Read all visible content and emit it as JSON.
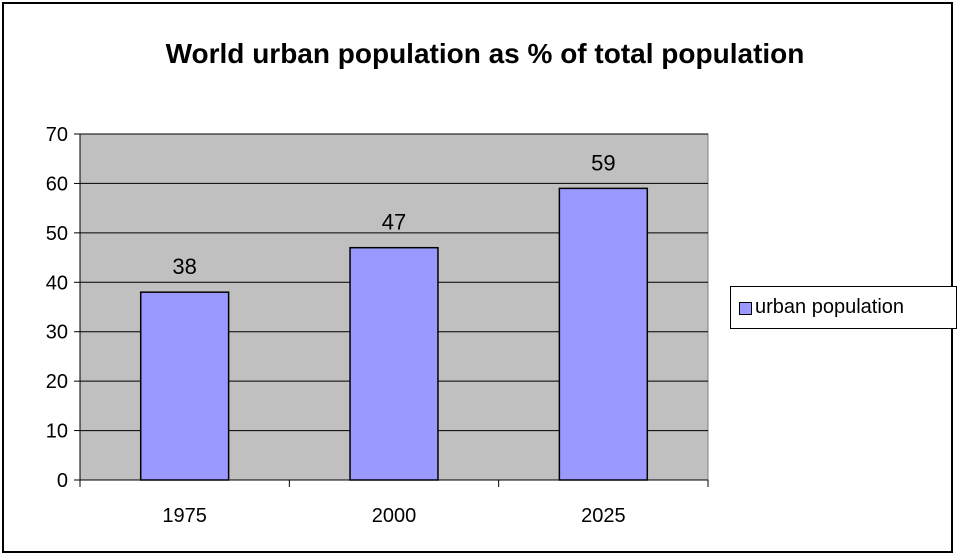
{
  "chart_data": {
    "type": "bar",
    "title": "World urban population as % of total population",
    "categories": [
      "1975",
      "2000",
      "2025"
    ],
    "series": [
      {
        "name": "urban population",
        "values": [
          38,
          47,
          59
        ],
        "color": "#9999ff"
      }
    ],
    "ylim": [
      0,
      70
    ],
    "yticks": [
      0,
      10,
      20,
      30,
      40,
      50,
      60,
      70
    ],
    "data_labels": [
      "38",
      "47",
      "59"
    ],
    "grid": true,
    "plot_background": "#c0c0c0",
    "legend_position": "right"
  }
}
